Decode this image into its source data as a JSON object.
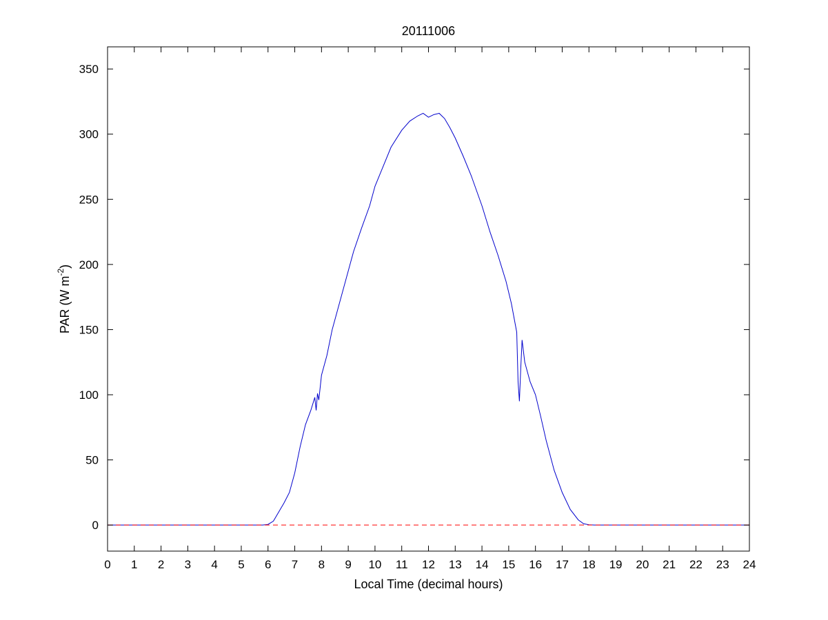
{
  "chart_data": {
    "type": "line",
    "title": "20111006",
    "xlabel": "Local Time (decimal hours)",
    "ylabel": {
      "prefix": "PAR (W m",
      "superscript": "-2",
      "suffix": ")"
    },
    "xlim": [
      0,
      24
    ],
    "ylim": [
      -20,
      367
    ],
    "xticks": [
      0,
      1,
      2,
      3,
      4,
      5,
      6,
      7,
      8,
      9,
      10,
      11,
      12,
      13,
      14,
      15,
      16,
      17,
      18,
      19,
      20,
      21,
      22,
      23,
      24
    ],
    "yticks": [
      0,
      50,
      100,
      150,
      200,
      250,
      300,
      350
    ],
    "grid": false,
    "series": [
      {
        "color": "#0000cc",
        "style": "solid",
        "x": [
          0,
          5.8,
          6.0,
          6.2,
          6.4,
          6.6,
          6.8,
          7.0,
          7.2,
          7.4,
          7.6,
          7.75,
          7.8,
          7.85,
          7.9,
          8.0,
          8.2,
          8.4,
          8.6,
          8.8,
          9.0,
          9.2,
          9.5,
          9.8,
          10.0,
          10.3,
          10.6,
          11.0,
          11.3,
          11.6,
          11.8,
          12.0,
          12.2,
          12.4,
          12.6,
          12.8,
          13.0,
          13.3,
          13.6,
          14.0,
          14.3,
          14.6,
          14.9,
          15.1,
          15.3,
          15.35,
          15.4,
          15.45,
          15.5,
          15.6,
          15.8,
          16.0,
          16.2,
          16.4,
          16.7,
          17.0,
          17.3,
          17.6,
          17.8,
          18.0,
          18.2,
          24
        ],
        "y": [
          0,
          0,
          0.5,
          3,
          10,
          17,
          25,
          40,
          60,
          77,
          88,
          98,
          88,
          101,
          96,
          115,
          130,
          150,
          165,
          180,
          195,
          210,
          228,
          245,
          260,
          275,
          290,
          303,
          310,
          314,
          316,
          313,
          315,
          316,
          312,
          305,
          297,
          283,
          268,
          245,
          225,
          207,
          187,
          170,
          148,
          110,
          95,
          120,
          142,
          125,
          110,
          100,
          83,
          65,
          42,
          25,
          12,
          4,
          1,
          0.2,
          0,
          0
        ]
      },
      {
        "color": "#ff0000",
        "style": "dashed",
        "x": [
          0,
          24
        ],
        "y": [
          0,
          0
        ]
      }
    ]
  }
}
